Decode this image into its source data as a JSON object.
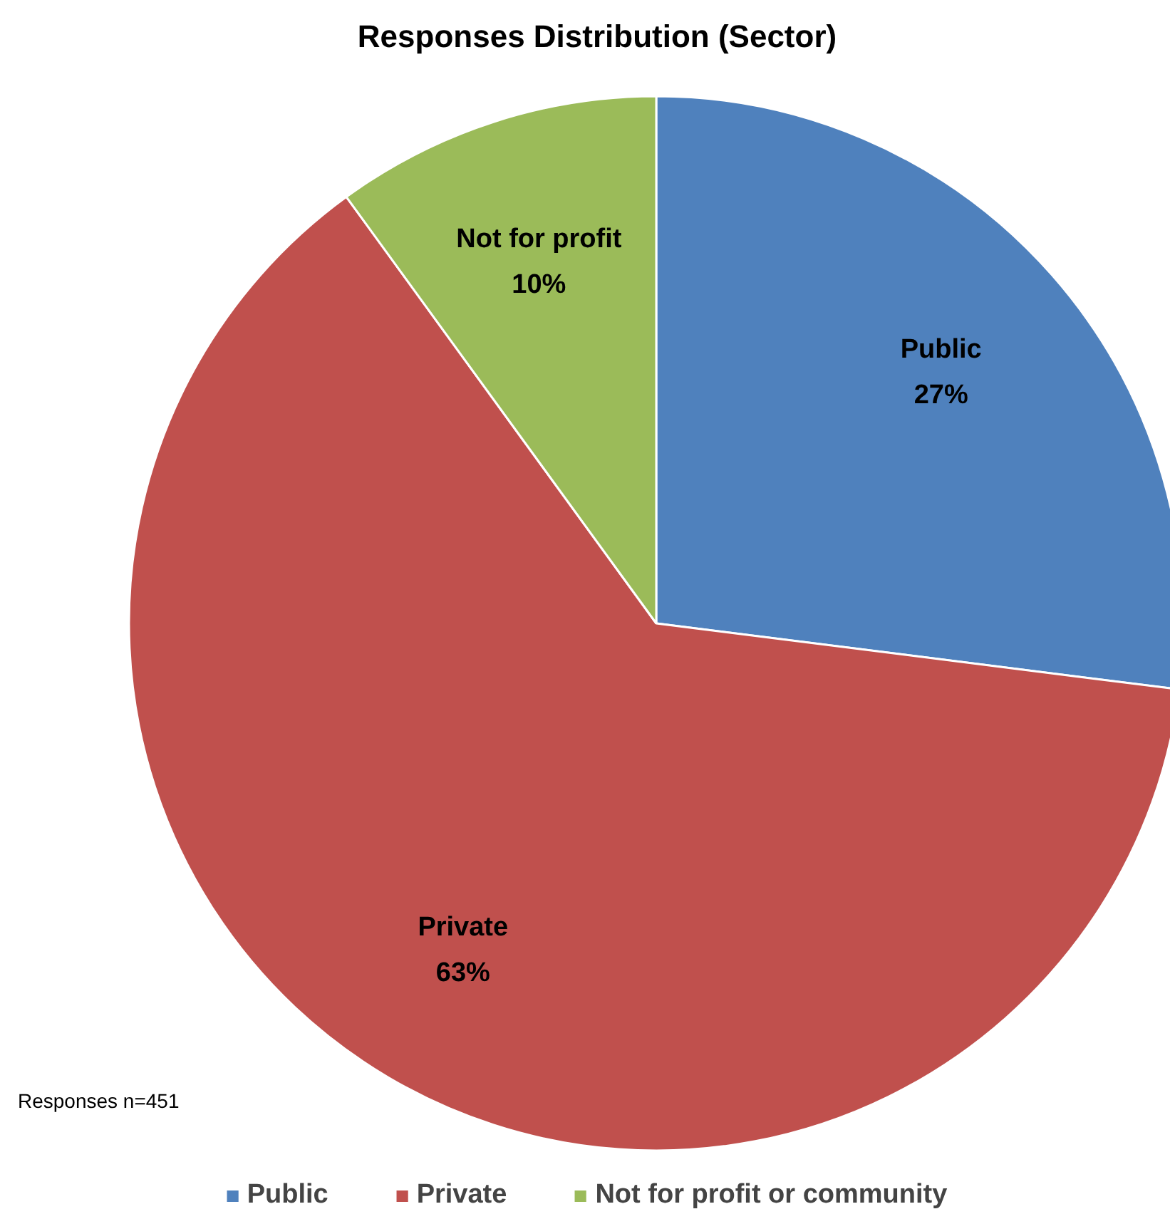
{
  "chart_data": {
    "type": "pie",
    "title": "Responses Distribution (Sector)",
    "categories": [
      "Public",
      "Private",
      "Not for profit or community"
    ],
    "values": [
      27,
      63,
      10
    ],
    "colors": [
      "#4f81bd",
      "#c0504d",
      "#9bbb59"
    ],
    "value_labels": [
      "Public\n27%",
      "Private\n63%",
      "Not for profit\n10%"
    ],
    "annotations": [
      "Responses n=451"
    ],
    "legend": "bottom"
  }
}
